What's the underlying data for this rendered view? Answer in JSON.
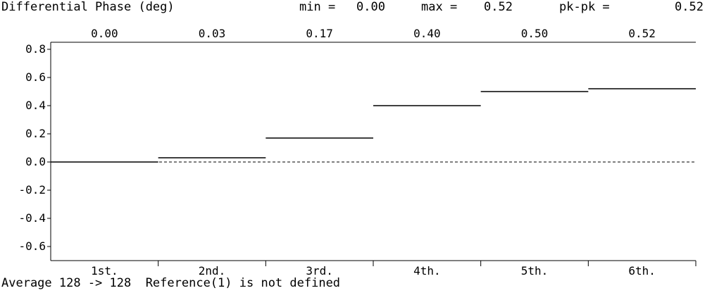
{
  "header": {
    "title": "Differential Phase (deg)",
    "min_label": "min =",
    "min_value": "0.00",
    "max_label": "max =",
    "max_value": "0.52",
    "pkpk_label": "pk-pk =",
    "pkpk_value": "0.52"
  },
  "footer": {
    "status": "Average 128 -> 128  Reference(1) is not defined"
  },
  "chart_data": {
    "type": "step",
    "categories": [
      "1st.",
      "2nd.",
      "3rd.",
      "4th.",
      "5th.",
      "6th."
    ],
    "values": [
      0.0,
      0.03,
      0.17,
      0.4,
      0.5,
      0.52
    ],
    "value_labels": [
      "0.00",
      "0.03",
      "0.17",
      "0.40",
      "0.50",
      "0.52"
    ],
    "y_ticks": [
      0.8,
      0.6,
      0.4,
      0.2,
      0.0,
      -0.2,
      -0.4,
      -0.6
    ],
    "y_tick_labels": [
      "0.8",
      "0.6",
      "0.4",
      "0.2",
      "0.0",
      "-0.2",
      "-0.4",
      "-0.6"
    ],
    "ylim": [
      -0.7,
      0.85
    ],
    "zero_line": "dashed",
    "grid": false
  }
}
